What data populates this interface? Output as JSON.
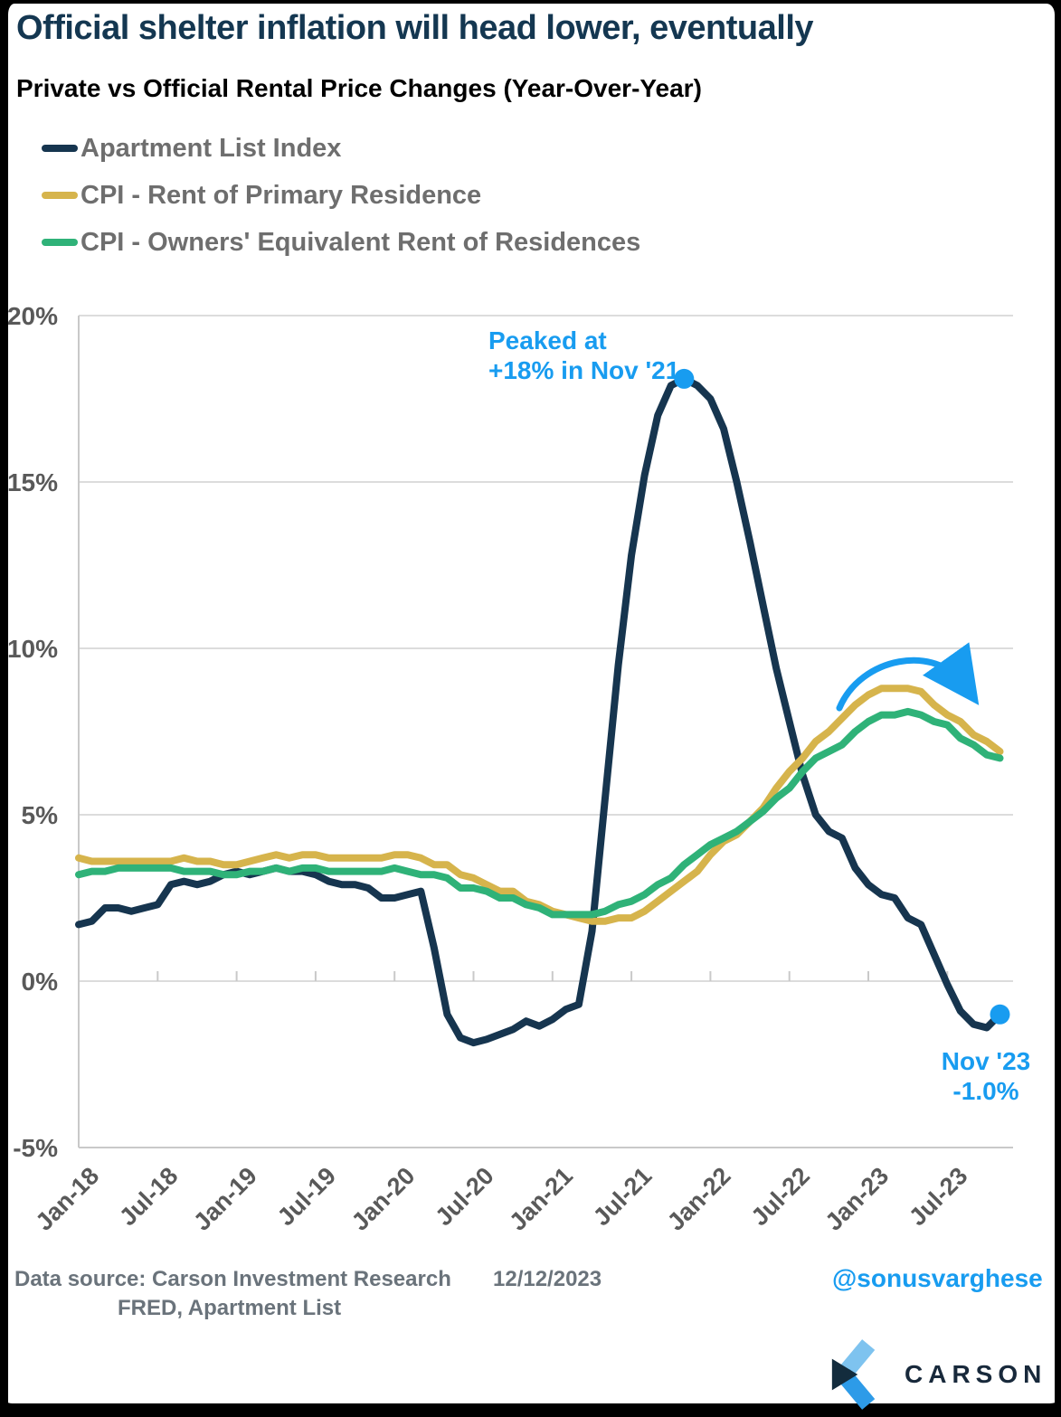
{
  "header": {
    "title": "Official shelter inflation will head lower, eventually",
    "subtitle": "Private vs Official Rental Price Changes (Year-Over-Year)"
  },
  "legend": {
    "items": [
      {
        "id": "apartment-list",
        "label": "Apartment List Index",
        "color": "#16354F"
      },
      {
        "id": "cpi-rent",
        "label": "CPI - Rent of Primary Residence",
        "color": "#D6B44C"
      },
      {
        "id": "cpi-oer",
        "label": "CPI - Owners' Equivalent Rent of Residences",
        "color": "#2FB278"
      }
    ]
  },
  "chart_data": {
    "type": "line",
    "title": "Private vs Official Rental Price Changes (Year-Over-Year)",
    "ylim": [
      -5,
      20
    ],
    "grid": "horizontal",
    "legend_position": "top-left",
    "y_tick_values": [
      20,
      15,
      10,
      5,
      0,
      -5
    ],
    "y_tick_labels": [
      "20%",
      "15%",
      "10%",
      "5%",
      "0%",
      "-5%"
    ],
    "x_tick_labels": [
      "Jan-18",
      "Jul-18",
      "Jan-19",
      "Jul-19",
      "Jan-20",
      "Jul-20",
      "Jan-21",
      "Jul-21",
      "Jan-22",
      "Jul-22",
      "Jan-23",
      "Jul-23"
    ],
    "months": [
      "Jan-18",
      "Feb-18",
      "Mar-18",
      "Apr-18",
      "May-18",
      "Jun-18",
      "Jul-18",
      "Aug-18",
      "Sep-18",
      "Oct-18",
      "Nov-18",
      "Dec-18",
      "Jan-19",
      "Feb-19",
      "Mar-19",
      "Apr-19",
      "May-19",
      "Jun-19",
      "Jul-19",
      "Aug-19",
      "Sep-19",
      "Oct-19",
      "Nov-19",
      "Dec-19",
      "Jan-20",
      "Feb-20",
      "Mar-20",
      "Apr-20",
      "May-20",
      "Jun-20",
      "Jul-20",
      "Aug-20",
      "Sep-20",
      "Oct-20",
      "Nov-20",
      "Dec-20",
      "Jan-21",
      "Feb-21",
      "Mar-21",
      "Apr-21",
      "May-21",
      "Jun-21",
      "Jul-21",
      "Aug-21",
      "Sep-21",
      "Oct-21",
      "Nov-21",
      "Dec-21",
      "Jan-22",
      "Feb-22",
      "Mar-22",
      "Apr-22",
      "May-22",
      "Jun-22",
      "Jul-22",
      "Aug-22",
      "Sep-22",
      "Oct-22",
      "Nov-22",
      "Dec-22",
      "Jan-23",
      "Feb-23",
      "Mar-23",
      "Apr-23",
      "May-23",
      "Jun-23",
      "Jul-23",
      "Aug-23",
      "Sep-23",
      "Oct-23",
      "Nov-23"
    ],
    "series": [
      {
        "id": "apartment-list",
        "name": "Apartment List Index",
        "color": "#16354F",
        "values": [
          1.7,
          1.8,
          2.2,
          2.2,
          2.1,
          2.2,
          2.3,
          2.9,
          3.0,
          2.9,
          3.0,
          3.2,
          3.3,
          3.2,
          3.3,
          3.4,
          3.3,
          3.3,
          3.2,
          3.0,
          2.9,
          2.9,
          2.8,
          2.5,
          2.5,
          2.6,
          2.7,
          1.0,
          -1.0,
          -1.7,
          -1.85,
          -1.75,
          -1.6,
          -1.45,
          -1.2,
          -1.35,
          -1.15,
          -0.85,
          -0.7,
          1.5,
          5.5,
          9.5,
          12.8,
          15.2,
          17.0,
          17.9,
          18.1,
          17.9,
          17.5,
          16.6,
          15.0,
          13.2,
          11.3,
          9.4,
          7.8,
          6.2,
          5.0,
          4.5,
          4.3,
          3.4,
          2.9,
          2.6,
          2.5,
          1.9,
          1.7,
          0.8,
          -0.1,
          -0.9,
          -1.3,
          -1.4,
          -1.0
        ]
      },
      {
        "id": "cpi-rent",
        "name": "CPI - Rent of Primary Residence",
        "color": "#D6B44C",
        "values": [
          3.7,
          3.6,
          3.6,
          3.6,
          3.6,
          3.6,
          3.6,
          3.6,
          3.7,
          3.6,
          3.6,
          3.5,
          3.5,
          3.6,
          3.7,
          3.8,
          3.7,
          3.8,
          3.8,
          3.7,
          3.7,
          3.7,
          3.7,
          3.7,
          3.8,
          3.8,
          3.7,
          3.5,
          3.5,
          3.2,
          3.1,
          2.9,
          2.7,
          2.7,
          2.4,
          2.3,
          2.1,
          2.0,
          1.9,
          1.8,
          1.8,
          1.9,
          1.9,
          2.1,
          2.4,
          2.7,
          3.0,
          3.3,
          3.8,
          4.2,
          4.4,
          4.8,
          5.2,
          5.8,
          6.3,
          6.7,
          7.2,
          7.5,
          7.9,
          8.3,
          8.6,
          8.8,
          8.8,
          8.8,
          8.7,
          8.3,
          8.0,
          7.8,
          7.4,
          7.2,
          6.9
        ]
      },
      {
        "id": "cpi-oer",
        "name": "CPI - Owners' Equivalent Rent of Residences",
        "color": "#2FB278",
        "values": [
          3.2,
          3.3,
          3.3,
          3.4,
          3.4,
          3.4,
          3.4,
          3.4,
          3.3,
          3.3,
          3.3,
          3.2,
          3.2,
          3.3,
          3.3,
          3.4,
          3.3,
          3.4,
          3.4,
          3.3,
          3.3,
          3.3,
          3.3,
          3.3,
          3.4,
          3.3,
          3.2,
          3.2,
          3.1,
          2.8,
          2.8,
          2.7,
          2.5,
          2.5,
          2.3,
          2.2,
          2.0,
          2.0,
          2.0,
          2.0,
          2.1,
          2.3,
          2.4,
          2.6,
          2.9,
          3.1,
          3.5,
          3.8,
          4.1,
          4.3,
          4.5,
          4.8,
          5.1,
          5.5,
          5.8,
          6.3,
          6.7,
          6.9,
          7.1,
          7.5,
          7.8,
          8.0,
          8.0,
          8.1,
          8.0,
          7.8,
          7.7,
          7.3,
          7.1,
          6.8,
          6.7
        ]
      }
    ],
    "annotations": [
      {
        "id": "peak",
        "lines": [
          "Peaked at",
          "+18% in Nov '21"
        ],
        "marker_month": "Nov-21",
        "marker_value": 18.1,
        "color": "#189CF0"
      },
      {
        "id": "latest",
        "lines": [
          "Nov '23",
          "-1.0%"
        ],
        "marker_month": "Nov-23",
        "marker_value": -1.0,
        "color": "#189CF0"
      },
      {
        "id": "rollover-arrow",
        "shape": "curved-arrow",
        "color": "#189CF0"
      }
    ]
  },
  "footer": {
    "source_line1": "Data source: Carson Investment Research",
    "source_line2": "FRED, Apartment List",
    "date": "12/12/2023",
    "handle": "@sonusvarghese",
    "logo_text": "CARSON"
  },
  "colors": {
    "navy": "#16354F",
    "gold": "#D6B44C",
    "green": "#2FB278",
    "blue": "#189CF0",
    "title_navy": "#143751",
    "axis_text": "#595959",
    "legend_text": "#6E6E6E",
    "footer_text": "#6A737B",
    "gridline": "#DCDCDC",
    "axis_line": "#C9C9C9",
    "frame": "#000000",
    "logo_light_blue": "#7EC3EF",
    "logo_mid_blue": "#2D9BE8",
    "logo_dark_navy": "#132C3D",
    "logo_text_color": "#18293B"
  }
}
